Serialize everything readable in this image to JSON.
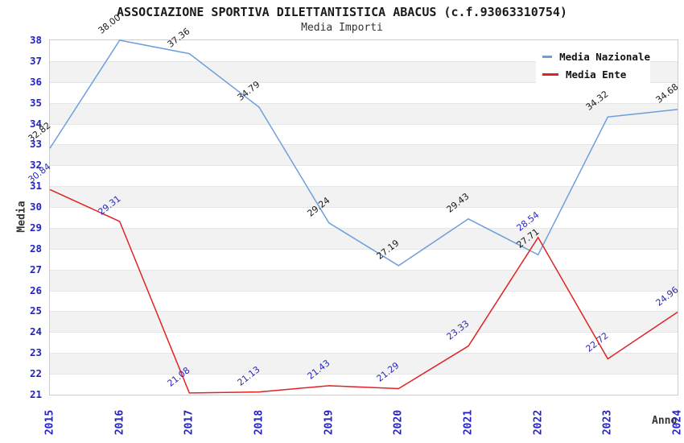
{
  "title": "ASSOCIAZIONE SPORTIVA DILETTANTISTICA ABACUS (c.f.93063310754)",
  "subtitle": "Media Importi",
  "axes": {
    "x_label": "Anno",
    "y_label": "Media",
    "x_ticks": [
      "2015",
      "2016",
      "2017",
      "2018",
      "2019",
      "2020",
      "2021",
      "2022",
      "2023",
      "2024"
    ],
    "y_ticks": [
      "21",
      "22",
      "23",
      "24",
      "25",
      "26",
      "27",
      "28",
      "29",
      "30",
      "31",
      "32",
      "33",
      "34",
      "35",
      "36",
      "37",
      "38"
    ],
    "tick_color": "#2424bd"
  },
  "legend": [
    {
      "label": "Media Nazionale",
      "color": "#6e9fdd"
    },
    {
      "label": "Media Ente",
      "color": "#e02222"
    }
  ],
  "chart_data": {
    "type": "line",
    "title": "Media Importi",
    "x": [
      "2015",
      "2016",
      "2017",
      "2018",
      "2019",
      "2020",
      "2021",
      "2022",
      "2023",
      "2024"
    ],
    "series": [
      {
        "name": "Media Nazionale",
        "color": "#6e9fdd",
        "label_color": "#1a1a1a",
        "values": [
          32.82,
          38.0,
          37.36,
          34.79,
          29.24,
          27.19,
          29.43,
          27.71,
          34.32,
          34.68
        ],
        "point_labels": [
          "32.82",
          "38.00",
          "37.36",
          "34.79",
          "29.24",
          "27.19",
          "29.43",
          "27.71",
          "34.32",
          "34.68"
        ]
      },
      {
        "name": "Media Ente",
        "color": "#e02222",
        "label_color": "#2a2ab8",
        "values": [
          30.84,
          29.31,
          21.08,
          21.13,
          21.43,
          21.29,
          23.33,
          28.54,
          22.72,
          24.96
        ],
        "point_labels": [
          "30.84",
          "29.31",
          "21.08",
          "21.13",
          "21.43",
          "21.29",
          "23.33",
          "28.54",
          "22.72",
          "24.96"
        ]
      }
    ],
    "ylim": [
      21,
      38
    ],
    "y_tick_step": 1,
    "grid": "horizontal-alternating-bands",
    "band_color": "#f2f2f2",
    "legend_position": "top-right"
  }
}
